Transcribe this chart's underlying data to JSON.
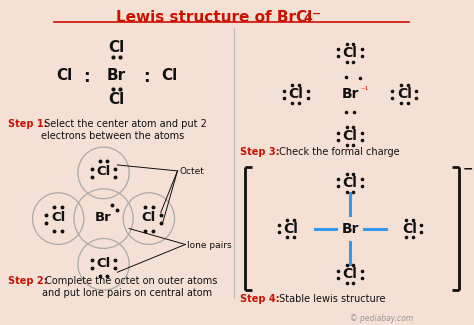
{
  "bg_color": "#f5e0d5",
  "red": "#cc1100",
  "blue": "#3399ee",
  "black": "#111111",
  "gray": "#999999",
  "step1_label": "Step 1:",
  "step1_text": " Select the center atom and put 2\nelectrons between the atoms",
  "step2_label": "Step 2:",
  "step2_text": " Complete the octet on outer atoms\nand put lone pairs on central atom",
  "step3_label": "Step 3:",
  "step3_text": " Check the formal charge",
  "step4_label": "Step 4:",
  "step4_text": " Stable lewis structure",
  "watermark": "© pediabay.com",
  "title_part1": "Lewis structure of BrCl",
  "title_sub4": "4",
  "title_charge": "−",
  "octet_label": "Octet",
  "lonepairs_label": "lone pairs"
}
